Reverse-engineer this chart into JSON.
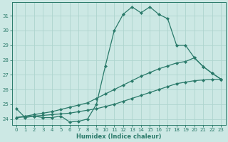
{
  "xlabel": "Humidex (Indice chaleur)",
  "bg_color": "#cce8e4",
  "grid_color": "#aed4ce",
  "line_color": "#2a7a6a",
  "xlim": [
    -0.5,
    23.5
  ],
  "ylim": [
    23.6,
    31.9
  ],
  "xticks": [
    0,
    1,
    2,
    3,
    4,
    5,
    6,
    7,
    8,
    9,
    10,
    11,
    12,
    13,
    14,
    15,
    16,
    17,
    18,
    19,
    20,
    21,
    22,
    23
  ],
  "yticks": [
    24,
    25,
    26,
    27,
    28,
    29,
    30,
    31
  ],
  "line1_x": [
    0,
    1,
    2,
    3,
    4,
    5,
    6,
    7,
    8,
    9,
    10,
    11,
    12,
    13,
    14,
    15,
    16,
    17,
    18,
    19,
    20,
    21,
    22,
    23
  ],
  "line1_y": [
    24.7,
    24.1,
    24.2,
    24.1,
    24.1,
    24.2,
    23.8,
    23.85,
    24.0,
    25.0,
    27.6,
    30.0,
    31.1,
    31.6,
    31.2,
    31.6,
    31.1,
    30.8,
    29.0,
    29.0,
    28.15,
    27.55,
    27.1,
    26.7
  ],
  "line2_x": [
    0,
    1,
    2,
    3,
    4,
    5,
    6,
    7,
    8,
    9,
    10,
    11,
    12,
    13,
    14,
    15,
    16,
    17,
    18,
    19,
    20,
    21,
    22,
    23
  ],
  "line2_y": [
    24.1,
    24.15,
    24.2,
    24.25,
    24.3,
    24.35,
    24.4,
    24.5,
    24.6,
    24.7,
    24.85,
    25.0,
    25.2,
    25.4,
    25.6,
    25.8,
    26.0,
    26.2,
    26.4,
    26.5,
    26.6,
    26.65,
    26.68,
    26.7
  ],
  "line3_x": [
    0,
    1,
    2,
    3,
    4,
    5,
    6,
    7,
    8,
    9,
    10,
    11,
    12,
    13,
    14,
    15,
    16,
    17,
    18,
    19,
    20,
    21,
    22,
    23
  ],
  "line3_y": [
    24.1,
    24.2,
    24.3,
    24.4,
    24.5,
    24.65,
    24.8,
    24.95,
    25.1,
    25.4,
    25.7,
    26.0,
    26.3,
    26.6,
    26.9,
    27.15,
    27.4,
    27.6,
    27.8,
    27.9,
    28.15,
    27.55,
    27.1,
    26.7
  ],
  "marker_size": 2.2,
  "line_width": 0.9
}
